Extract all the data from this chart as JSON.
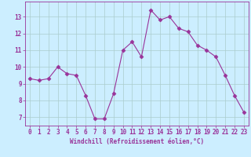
{
  "x": [
    0,
    1,
    2,
    3,
    4,
    5,
    6,
    7,
    8,
    9,
    10,
    11,
    12,
    13,
    14,
    15,
    16,
    17,
    18,
    19,
    20,
    21,
    22,
    23
  ],
  "y": [
    9.3,
    9.2,
    9.3,
    10.0,
    9.6,
    9.5,
    8.3,
    6.9,
    6.9,
    8.4,
    11.0,
    11.5,
    10.6,
    13.4,
    12.8,
    13.0,
    12.3,
    12.1,
    11.3,
    11.0,
    10.6,
    9.5,
    8.3,
    7.3
  ],
  "line_color": "#993399",
  "marker": "D",
  "marker_size": 2.5,
  "bg_color": "#cceeff",
  "grid_color": "#aacccc",
  "xlabel": "Windchill (Refroidissement éolien,°C)",
  "xlim": [
    -0.5,
    23.5
  ],
  "ylim": [
    6.5,
    13.9
  ],
  "yticks": [
    7,
    8,
    9,
    10,
    11,
    12,
    13
  ],
  "xticks": [
    0,
    1,
    2,
    3,
    4,
    5,
    6,
    7,
    8,
    9,
    10,
    11,
    12,
    13,
    14,
    15,
    16,
    17,
    18,
    19,
    20,
    21,
    22,
    23
  ],
  "tick_color": "#993399",
  "label_color": "#993399",
  "axis_color": "#993399",
  "font_size": 5.5
}
